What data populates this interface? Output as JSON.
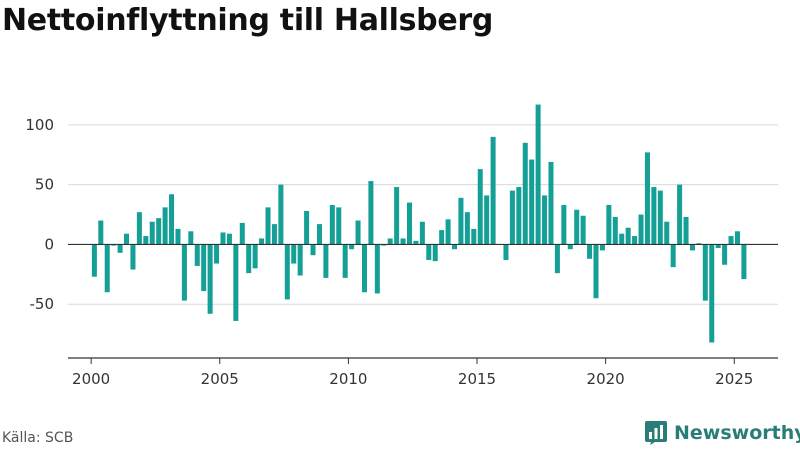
{
  "header": {
    "title": "Nettoinflyttning till Hallsberg"
  },
  "footer": {
    "source": "Källa: SCB",
    "brand": "Newsworthy"
  },
  "colors": {
    "bar": "#14a096",
    "brand": "#2a7d77",
    "grid": "#d9d9d9",
    "axis": "#333333"
  },
  "chart_data": {
    "type": "bar",
    "title": "Nettoinflyttning till Hallsberg",
    "xlabel": "",
    "ylabel": "",
    "x_ticks": [
      "2000",
      "2005",
      "2010",
      "2015",
      "2020",
      "2025"
    ],
    "y_ticks": [
      -50,
      0,
      50,
      100
    ],
    "ylim": [
      -95,
      125
    ],
    "xlim": [
      1999.1,
      2026.7
    ],
    "grid": true,
    "legend": "none",
    "series": [
      {
        "values": [
          {
            "x": "2000-Q1",
            "y": -27
          },
          {
            "x": "2000-Q2",
            "y": 20
          },
          {
            "x": "2000-Q3",
            "y": -40
          },
          {
            "x": "2000-Q4",
            "y": -1
          },
          {
            "x": "2001-Q1",
            "y": -7
          },
          {
            "x": "2001-Q2",
            "y": 9
          },
          {
            "x": "2001-Q3",
            "y": -21
          },
          {
            "x": "2001-Q4",
            "y": 27
          },
          {
            "x": "2002-Q1",
            "y": 7
          },
          {
            "x": "2002-Q2",
            "y": 19
          },
          {
            "x": "2002-Q3",
            "y": 22
          },
          {
            "x": "2002-Q4",
            "y": 31
          },
          {
            "x": "2003-Q1",
            "y": 42
          },
          {
            "x": "2003-Q2",
            "y": 13
          },
          {
            "x": "2003-Q3",
            "y": -47
          },
          {
            "x": "2003-Q4",
            "y": 11
          },
          {
            "x": "2004-Q1",
            "y": -18
          },
          {
            "x": "2004-Q2",
            "y": -39
          },
          {
            "x": "2004-Q3",
            "y": -58
          },
          {
            "x": "2004-Q4",
            "y": -16
          },
          {
            "x": "2005-Q1",
            "y": 10
          },
          {
            "x": "2005-Q2",
            "y": 9
          },
          {
            "x": "2005-Q3",
            "y": -64
          },
          {
            "x": "2005-Q4",
            "y": 18
          },
          {
            "x": "2006-Q1",
            "y": -24
          },
          {
            "x": "2006-Q2",
            "y": -20
          },
          {
            "x": "2006-Q3",
            "y": 5
          },
          {
            "x": "2006-Q4",
            "y": 31
          },
          {
            "x": "2007-Q1",
            "y": 17
          },
          {
            "x": "2007-Q2",
            "y": 50
          },
          {
            "x": "2007-Q3",
            "y": -46
          },
          {
            "x": "2007-Q4",
            "y": -16
          },
          {
            "x": "2008-Q1",
            "y": -26
          },
          {
            "x": "2008-Q2",
            "y": 28
          },
          {
            "x": "2008-Q3",
            "y": -9
          },
          {
            "x": "2008-Q4",
            "y": 17
          },
          {
            "x": "2009-Q1",
            "y": -28
          },
          {
            "x": "2009-Q2",
            "y": 33
          },
          {
            "x": "2009-Q3",
            "y": 31
          },
          {
            "x": "2009-Q4",
            "y": -28
          },
          {
            "x": "2010-Q1",
            "y": -4
          },
          {
            "x": "2010-Q2",
            "y": 20
          },
          {
            "x": "2010-Q3",
            "y": -40
          },
          {
            "x": "2010-Q4",
            "y": 53
          },
          {
            "x": "2011-Q1",
            "y": -41
          },
          {
            "x": "2011-Q2",
            "y": -1
          },
          {
            "x": "2011-Q3",
            "y": 5
          },
          {
            "x": "2011-Q4",
            "y": 48
          },
          {
            "x": "2012-Q1",
            "y": 5
          },
          {
            "x": "2012-Q2",
            "y": 35
          },
          {
            "x": "2012-Q3",
            "y": 3
          },
          {
            "x": "2012-Q4",
            "y": 19
          },
          {
            "x": "2013-Q1",
            "y": -13
          },
          {
            "x": "2013-Q2",
            "y": -14
          },
          {
            "x": "2013-Q3",
            "y": 12
          },
          {
            "x": "2013-Q4",
            "y": 21
          },
          {
            "x": "2014-Q1",
            "y": -4
          },
          {
            "x": "2014-Q2",
            "y": 39
          },
          {
            "x": "2014-Q3",
            "y": 27
          },
          {
            "x": "2014-Q4",
            "y": 13
          },
          {
            "x": "2015-Q1",
            "y": 63
          },
          {
            "x": "2015-Q2",
            "y": 41
          },
          {
            "x": "2015-Q3",
            "y": 90
          },
          {
            "x": "2015-Q4",
            "y": 0
          },
          {
            "x": "2016-Q1",
            "y": -13
          },
          {
            "x": "2016-Q2",
            "y": 45
          },
          {
            "x": "2016-Q3",
            "y": 48
          },
          {
            "x": "2016-Q4",
            "y": 85
          },
          {
            "x": "2017-Q1",
            "y": 71
          },
          {
            "x": "2017-Q2",
            "y": 117
          },
          {
            "x": "2017-Q3",
            "y": 41
          },
          {
            "x": "2017-Q4",
            "y": 69
          },
          {
            "x": "2018-Q1",
            "y": -24
          },
          {
            "x": "2018-Q2",
            "y": 33
          },
          {
            "x": "2018-Q3",
            "y": -4
          },
          {
            "x": "2018-Q4",
            "y": 29
          },
          {
            "x": "2019-Q1",
            "y": 24
          },
          {
            "x": "2019-Q2",
            "y": -12
          },
          {
            "x": "2019-Q3",
            "y": -45
          },
          {
            "x": "2019-Q4",
            "y": -5
          },
          {
            "x": "2020-Q1",
            "y": 33
          },
          {
            "x": "2020-Q2",
            "y": 23
          },
          {
            "x": "2020-Q3",
            "y": 9
          },
          {
            "x": "2020-Q4",
            "y": 14
          },
          {
            "x": "2021-Q1",
            "y": 7
          },
          {
            "x": "2021-Q2",
            "y": 25
          },
          {
            "x": "2021-Q3",
            "y": 77
          },
          {
            "x": "2021-Q4",
            "y": 48
          },
          {
            "x": "2022-Q1",
            "y": 45
          },
          {
            "x": "2022-Q2",
            "y": 19
          },
          {
            "x": "2022-Q3",
            "y": -19
          },
          {
            "x": "2022-Q4",
            "y": 50
          },
          {
            "x": "2023-Q1",
            "y": 23
          },
          {
            "x": "2023-Q2",
            "y": -5
          },
          {
            "x": "2023-Q3",
            "y": 1
          },
          {
            "x": "2023-Q4",
            "y": -47
          },
          {
            "x": "2024-Q1",
            "y": -82
          },
          {
            "x": "2024-Q2",
            "y": -3
          },
          {
            "x": "2024-Q3",
            "y": -17
          },
          {
            "x": "2024-Q4",
            "y": 7
          },
          {
            "x": "2025-Q1",
            "y": 11
          },
          {
            "x": "2025-Q2",
            "y": -29
          }
        ]
      }
    ]
  }
}
